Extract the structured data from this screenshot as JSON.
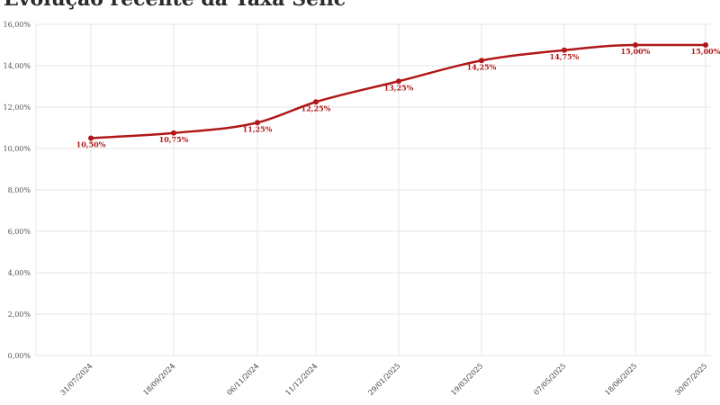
{
  "chart_data": {
    "type": "line",
    "title": "Evolução recente da Taxa Selic",
    "xlabel": "",
    "ylabel": "",
    "categories": [
      "31/07/2024",
      "18/09/2024",
      "06/11/2024",
      "11/12/2024",
      "29/01/2025",
      "19/03/2025",
      "07/05/2025",
      "18/06/2025",
      "30/07/2025"
    ],
    "values": [
      10.5,
      10.75,
      11.25,
      12.25,
      13.25,
      14.25,
      14.75,
      15.0,
      15.0
    ],
    "data_labels": [
      "10,50%",
      "10,75%",
      "11,25%",
      "12,25%",
      "13,25%",
      "14,25%",
      "14,75%",
      "15,00%",
      "15,00%"
    ],
    "ylim": [
      0,
      16
    ],
    "yticks": [
      0,
      2,
      4,
      6,
      8,
      10,
      12,
      14,
      16
    ],
    "ytick_labels": [
      "0,00%",
      "2,00%",
      "4,00%",
      "6,00%",
      "8,00%",
      "10,00%",
      "12,00%",
      "14,00%",
      "16,00%"
    ],
    "grid": true,
    "line_color": "#b01818",
    "grid_color": "#e6e6e6"
  }
}
